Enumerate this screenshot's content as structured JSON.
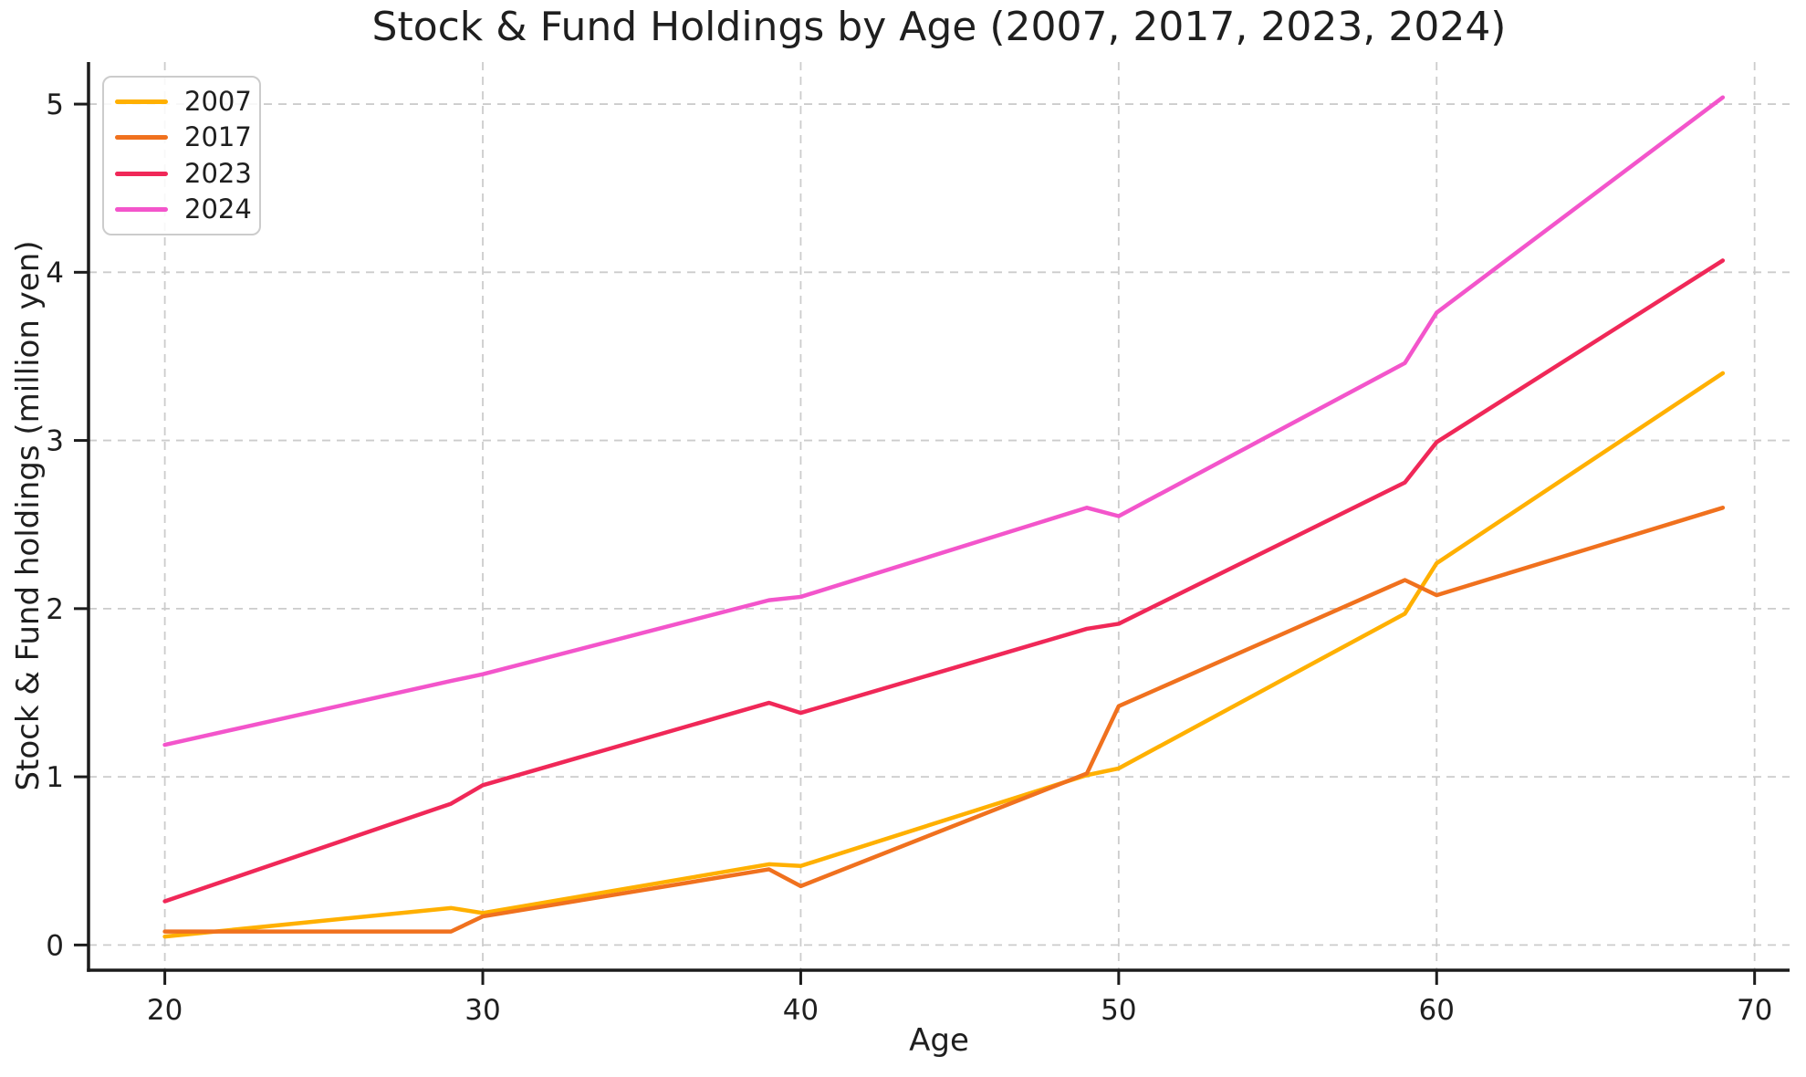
{
  "chart_data": {
    "type": "line",
    "title": "Stock & Fund Holdings by Age (2007, 2017, 2023, 2024)",
    "xlabel": "Age",
    "ylabel": "Stock & Fund holdings (million yen)",
    "x_ticks": [
      20,
      30,
      40,
      50,
      60,
      70
    ],
    "y_ticks": [
      0,
      1,
      2,
      3,
      4,
      5
    ],
    "xlim": [
      17.6,
      71.1
    ],
    "ylim": [
      -0.15,
      5.25
    ],
    "grid": true,
    "grid_style": "dashed",
    "legend_position": "upper left",
    "x": [
      20,
      29,
      30,
      39,
      40,
      49,
      50,
      59,
      60,
      69
    ],
    "series": [
      {
        "name": "2007",
        "color": "#FFB000",
        "values": [
          0.05,
          0.22,
          0.19,
          0.48,
          0.47,
          1.01,
          1.05,
          1.97,
          2.27,
          3.4
        ]
      },
      {
        "name": "2017",
        "color": "#F0711E",
        "values": [
          0.08,
          0.08,
          0.17,
          0.45,
          0.35,
          1.02,
          1.42,
          2.17,
          2.08,
          2.6
        ]
      },
      {
        "name": "2023",
        "color": "#F02858",
        "values": [
          0.26,
          0.84,
          0.95,
          1.44,
          1.38,
          1.88,
          1.91,
          2.75,
          2.99,
          4.07
        ]
      },
      {
        "name": "2024",
        "color": "#F355CB",
        "values": [
          1.19,
          1.57,
          1.61,
          2.05,
          2.07,
          2.6,
          2.55,
          3.46,
          3.76,
          5.04
        ]
      }
    ]
  },
  "colors": {
    "grid": "#cccccc",
    "spine": "#1c1c1c",
    "text": "#1f1f1f",
    "legend_border": "#cccccc",
    "background": "#ffffff"
  }
}
